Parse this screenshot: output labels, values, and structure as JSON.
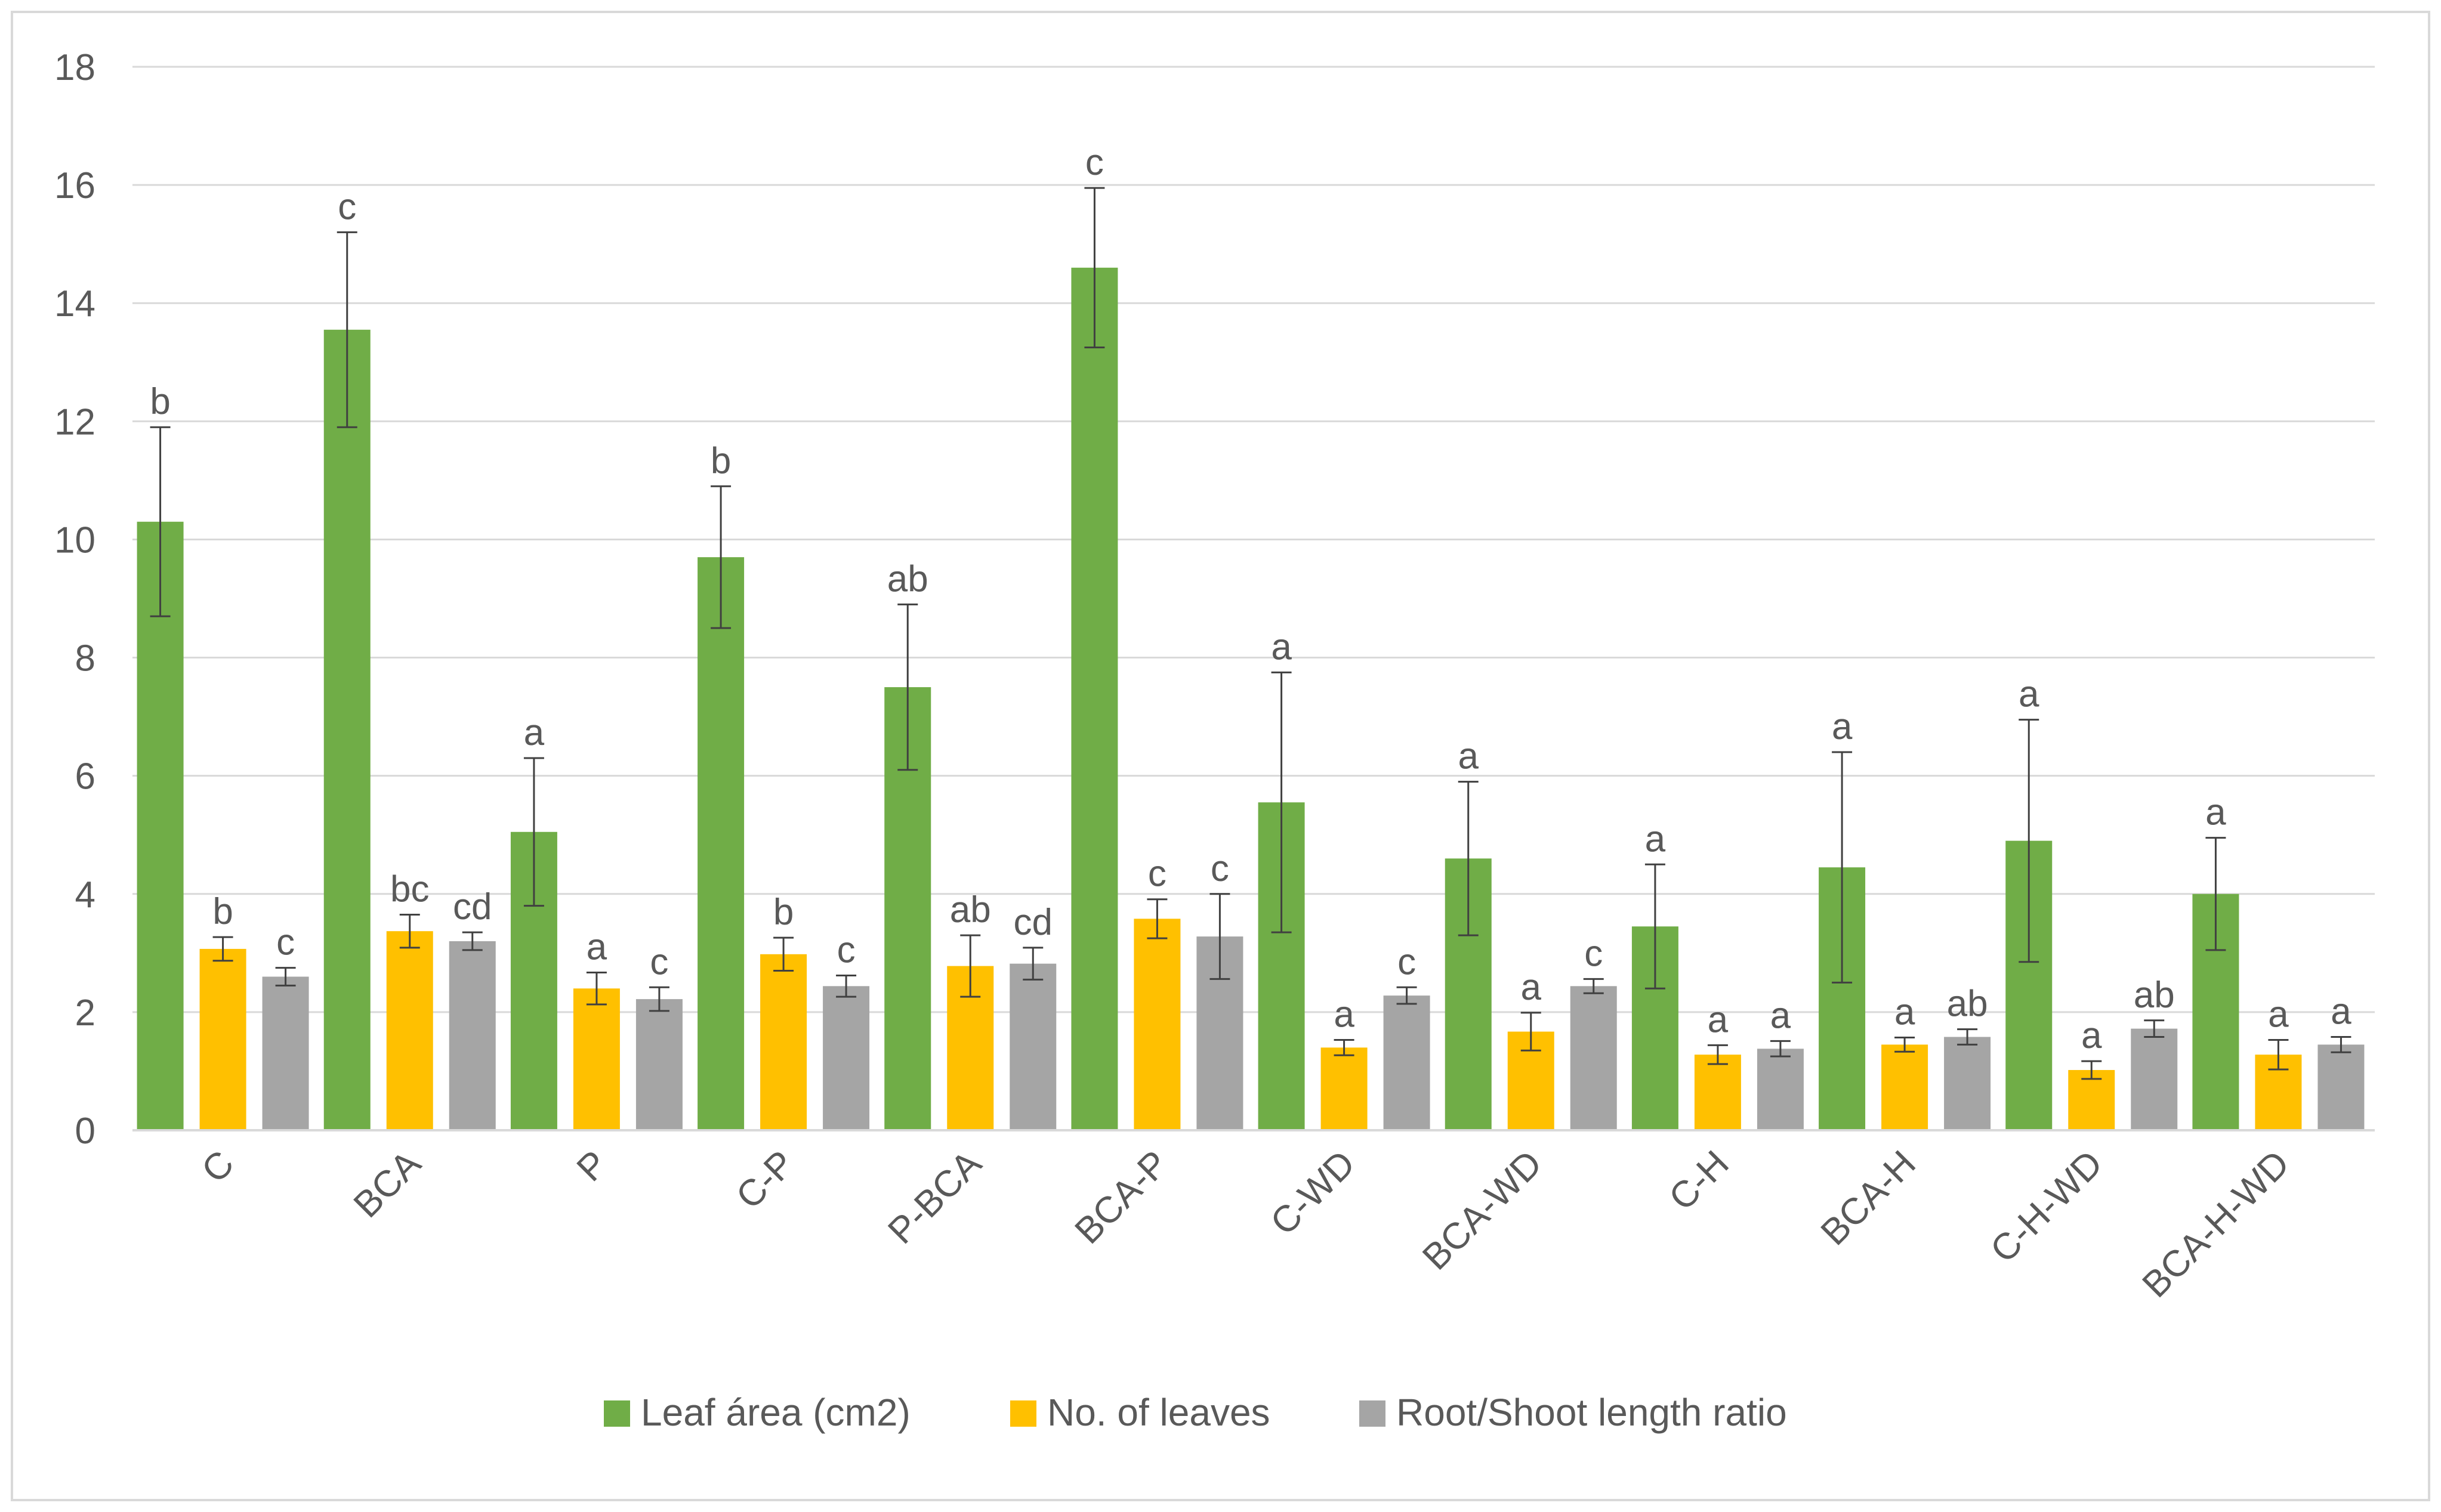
{
  "chart_data": {
    "type": "bar",
    "title": "",
    "xlabel": "",
    "ylabel": "",
    "ylim": [
      0,
      18
    ],
    "yticks": [
      0,
      2,
      4,
      6,
      8,
      10,
      12,
      14,
      16,
      18
    ],
    "grid": true,
    "legend_position": "bottom",
    "categories": [
      "C",
      "BCA",
      "P",
      "C-P",
      "P-BCA",
      "BCA-P",
      "C-WD",
      "BCA-WD",
      "C-H",
      "BCA-H",
      "C-H-WD",
      "BCA-H-WD"
    ],
    "series": [
      {
        "name": "Leaf área (cm2)",
        "color": "#70ad47",
        "values": [
          10.3,
          13.55,
          5.05,
          9.7,
          7.5,
          14.6,
          5.55,
          4.6,
          3.45,
          4.45,
          4.9,
          4.0
        ],
        "errors": [
          1.6,
          1.65,
          1.25,
          1.2,
          1.4,
          1.35,
          2.2,
          1.3,
          1.05,
          1.95,
          2.05,
          0.95
        ],
        "labels": [
          "b",
          "c",
          "a",
          "b",
          "ab",
          "c",
          "a",
          "a",
          "a",
          "a",
          "a",
          "a"
        ]
      },
      {
        "name": "No. of leaves",
        "color": "#ffc000",
        "values": [
          3.07,
          3.37,
          2.4,
          2.98,
          2.78,
          3.58,
          1.4,
          1.67,
          1.28,
          1.45,
          1.02,
          1.28
        ],
        "errors": [
          0.2,
          0.28,
          0.27,
          0.28,
          0.52,
          0.33,
          0.13,
          0.32,
          0.16,
          0.12,
          0.15,
          0.25
        ],
        "labels": [
          "b",
          "bc",
          "a",
          "b",
          "ab",
          "c",
          "a",
          "a",
          "a",
          "a",
          "a",
          "a"
        ]
      },
      {
        "name": "Root/Shoot length ratio",
        "color": "#a5a5a5",
        "values": [
          2.6,
          3.2,
          2.22,
          2.44,
          2.82,
          3.28,
          2.28,
          2.44,
          1.38,
          1.58,
          1.72,
          1.45
        ],
        "errors": [
          0.15,
          0.15,
          0.2,
          0.18,
          0.27,
          0.72,
          0.14,
          0.12,
          0.13,
          0.13,
          0.14,
          0.13
        ],
        "labels": [
          "c",
          "cd",
          "c",
          "c",
          "cd",
          "c",
          "c",
          "c",
          "a",
          "ab",
          "ab",
          "a"
        ]
      }
    ]
  }
}
